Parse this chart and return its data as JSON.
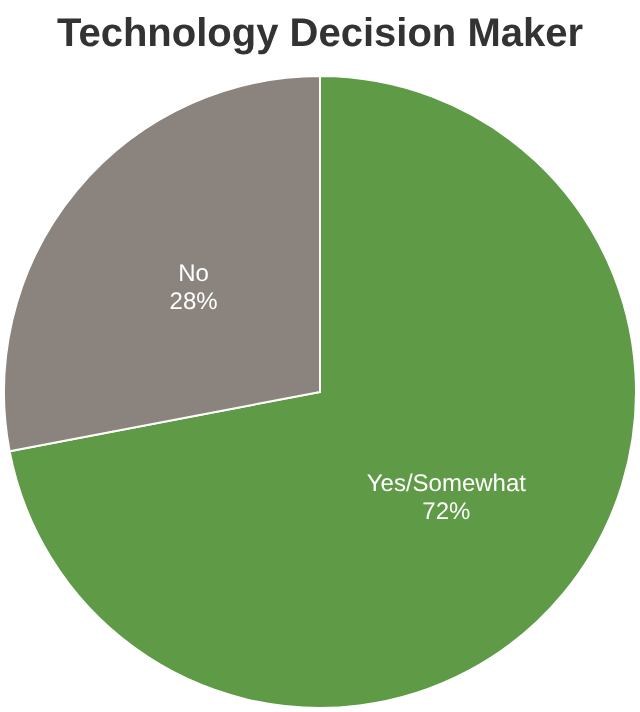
{
  "chart_data": {
    "type": "pie",
    "title": "Technology Decision Maker",
    "categories": [
      "Yes/Somewhat",
      "No"
    ],
    "values": [
      72,
      28
    ],
    "colors": [
      "#5f9a47",
      "#8b847e"
    ],
    "value_labels": [
      "72%",
      "28%"
    ],
    "legend": false
  }
}
